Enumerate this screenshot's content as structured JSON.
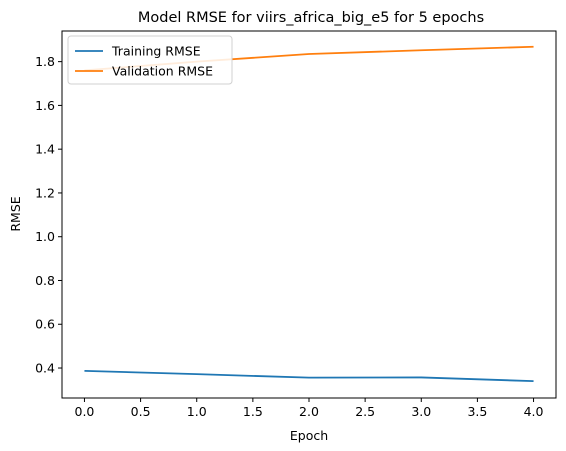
{
  "chart_data": {
    "type": "line",
    "title": "Model RMSE for viirs_africa_big_e5 for 5 epochs",
    "xlabel": "Epoch",
    "ylabel": "RMSE",
    "x": [
      0,
      1,
      2,
      3,
      4
    ],
    "xlim": [
      -0.2,
      4.2
    ],
    "ylim": [
      0.263,
      1.94
    ],
    "xticks": [
      0.0,
      0.5,
      1.0,
      1.5,
      2.0,
      2.5,
      3.0,
      3.5,
      4.0
    ],
    "xtick_labels": [
      "0.0",
      "0.5",
      "1.0",
      "1.5",
      "2.0",
      "2.5",
      "3.0",
      "3.5",
      "4.0"
    ],
    "yticks": [
      0.4,
      0.6,
      0.8,
      1.0,
      1.2,
      1.4,
      1.6,
      1.8
    ],
    "ytick_labels": [
      "0.4",
      "0.6",
      "0.8",
      "1.0",
      "1.2",
      "1.4",
      "1.6",
      "1.8"
    ],
    "grid": false,
    "legend_position": "upper-left",
    "series": [
      {
        "name": "Training RMSE",
        "color": "#1f77b4",
        "values": [
          0.387,
          0.372,
          0.356,
          0.357,
          0.34
        ]
      },
      {
        "name": "Validation RMSE",
        "color": "#ff7f0e",
        "values": [
          1.76,
          1.8,
          1.835,
          1.852,
          1.868
        ]
      }
    ]
  }
}
